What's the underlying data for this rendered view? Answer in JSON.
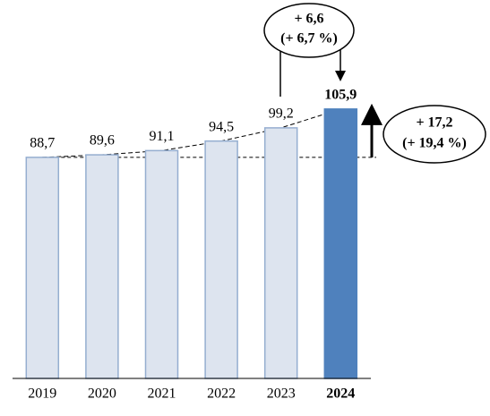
{
  "chart_data": {
    "type": "bar",
    "categories": [
      "2019",
      "2020",
      "2021",
      "2022",
      "2023",
      "2024"
    ],
    "values": [
      88.7,
      89.6,
      91.1,
      94.5,
      99.2,
      105.9
    ],
    "value_labels": [
      "88,7",
      "89,6",
      "91,1",
      "94,5",
      "99,2",
      "105,9"
    ],
    "colors": [
      "#dde4ef",
      "#dde4ef",
      "#dde4ef",
      "#dde4ef",
      "#dde4ef",
      "#4f81bd"
    ],
    "highlight_index": 5,
    "ylim": [
      10,
      110
    ],
    "annotations": [
      {
        "lines": [
          "+ 6,6",
          "(+ 6,7 %)"
        ]
      },
      {
        "lines": [
          "+ 17,2",
          "(+ 19,4 %)"
        ]
      }
    ]
  }
}
